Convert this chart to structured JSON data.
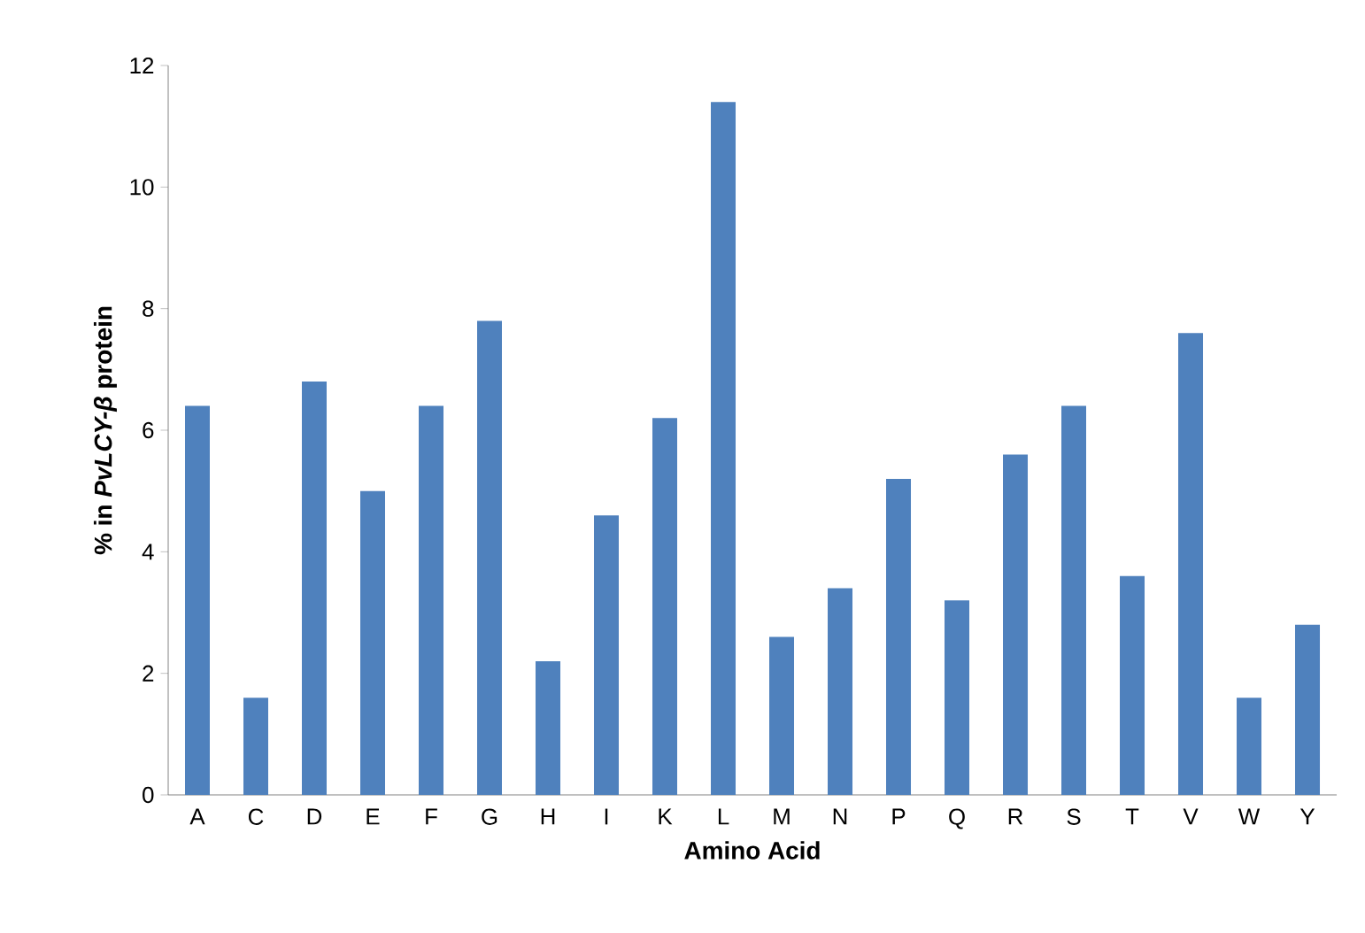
{
  "chart_data": {
    "type": "bar",
    "xlabel": "Amino Acid",
    "ylabel": "% in *PvLCY-β* protein",
    "categories": [
      "A",
      "C",
      "D",
      "E",
      "F",
      "G",
      "H",
      "I",
      "K",
      "L",
      "M",
      "N",
      "P",
      "Q",
      "R",
      "S",
      "T",
      "V",
      "W",
      "Y"
    ],
    "values": [
      6.4,
      1.6,
      6.8,
      5.0,
      6.4,
      7.8,
      2.2,
      4.6,
      6.2,
      11.4,
      2.6,
      3.4,
      5.2,
      3.2,
      5.6,
      6.4,
      3.6,
      7.6,
      1.6,
      2.8
    ],
    "color": "#4f81bd",
    "ylim": [
      0,
      12
    ],
    "yticks": [
      0,
      2,
      4,
      6,
      8,
      10,
      12
    ],
    "grid": false
  }
}
